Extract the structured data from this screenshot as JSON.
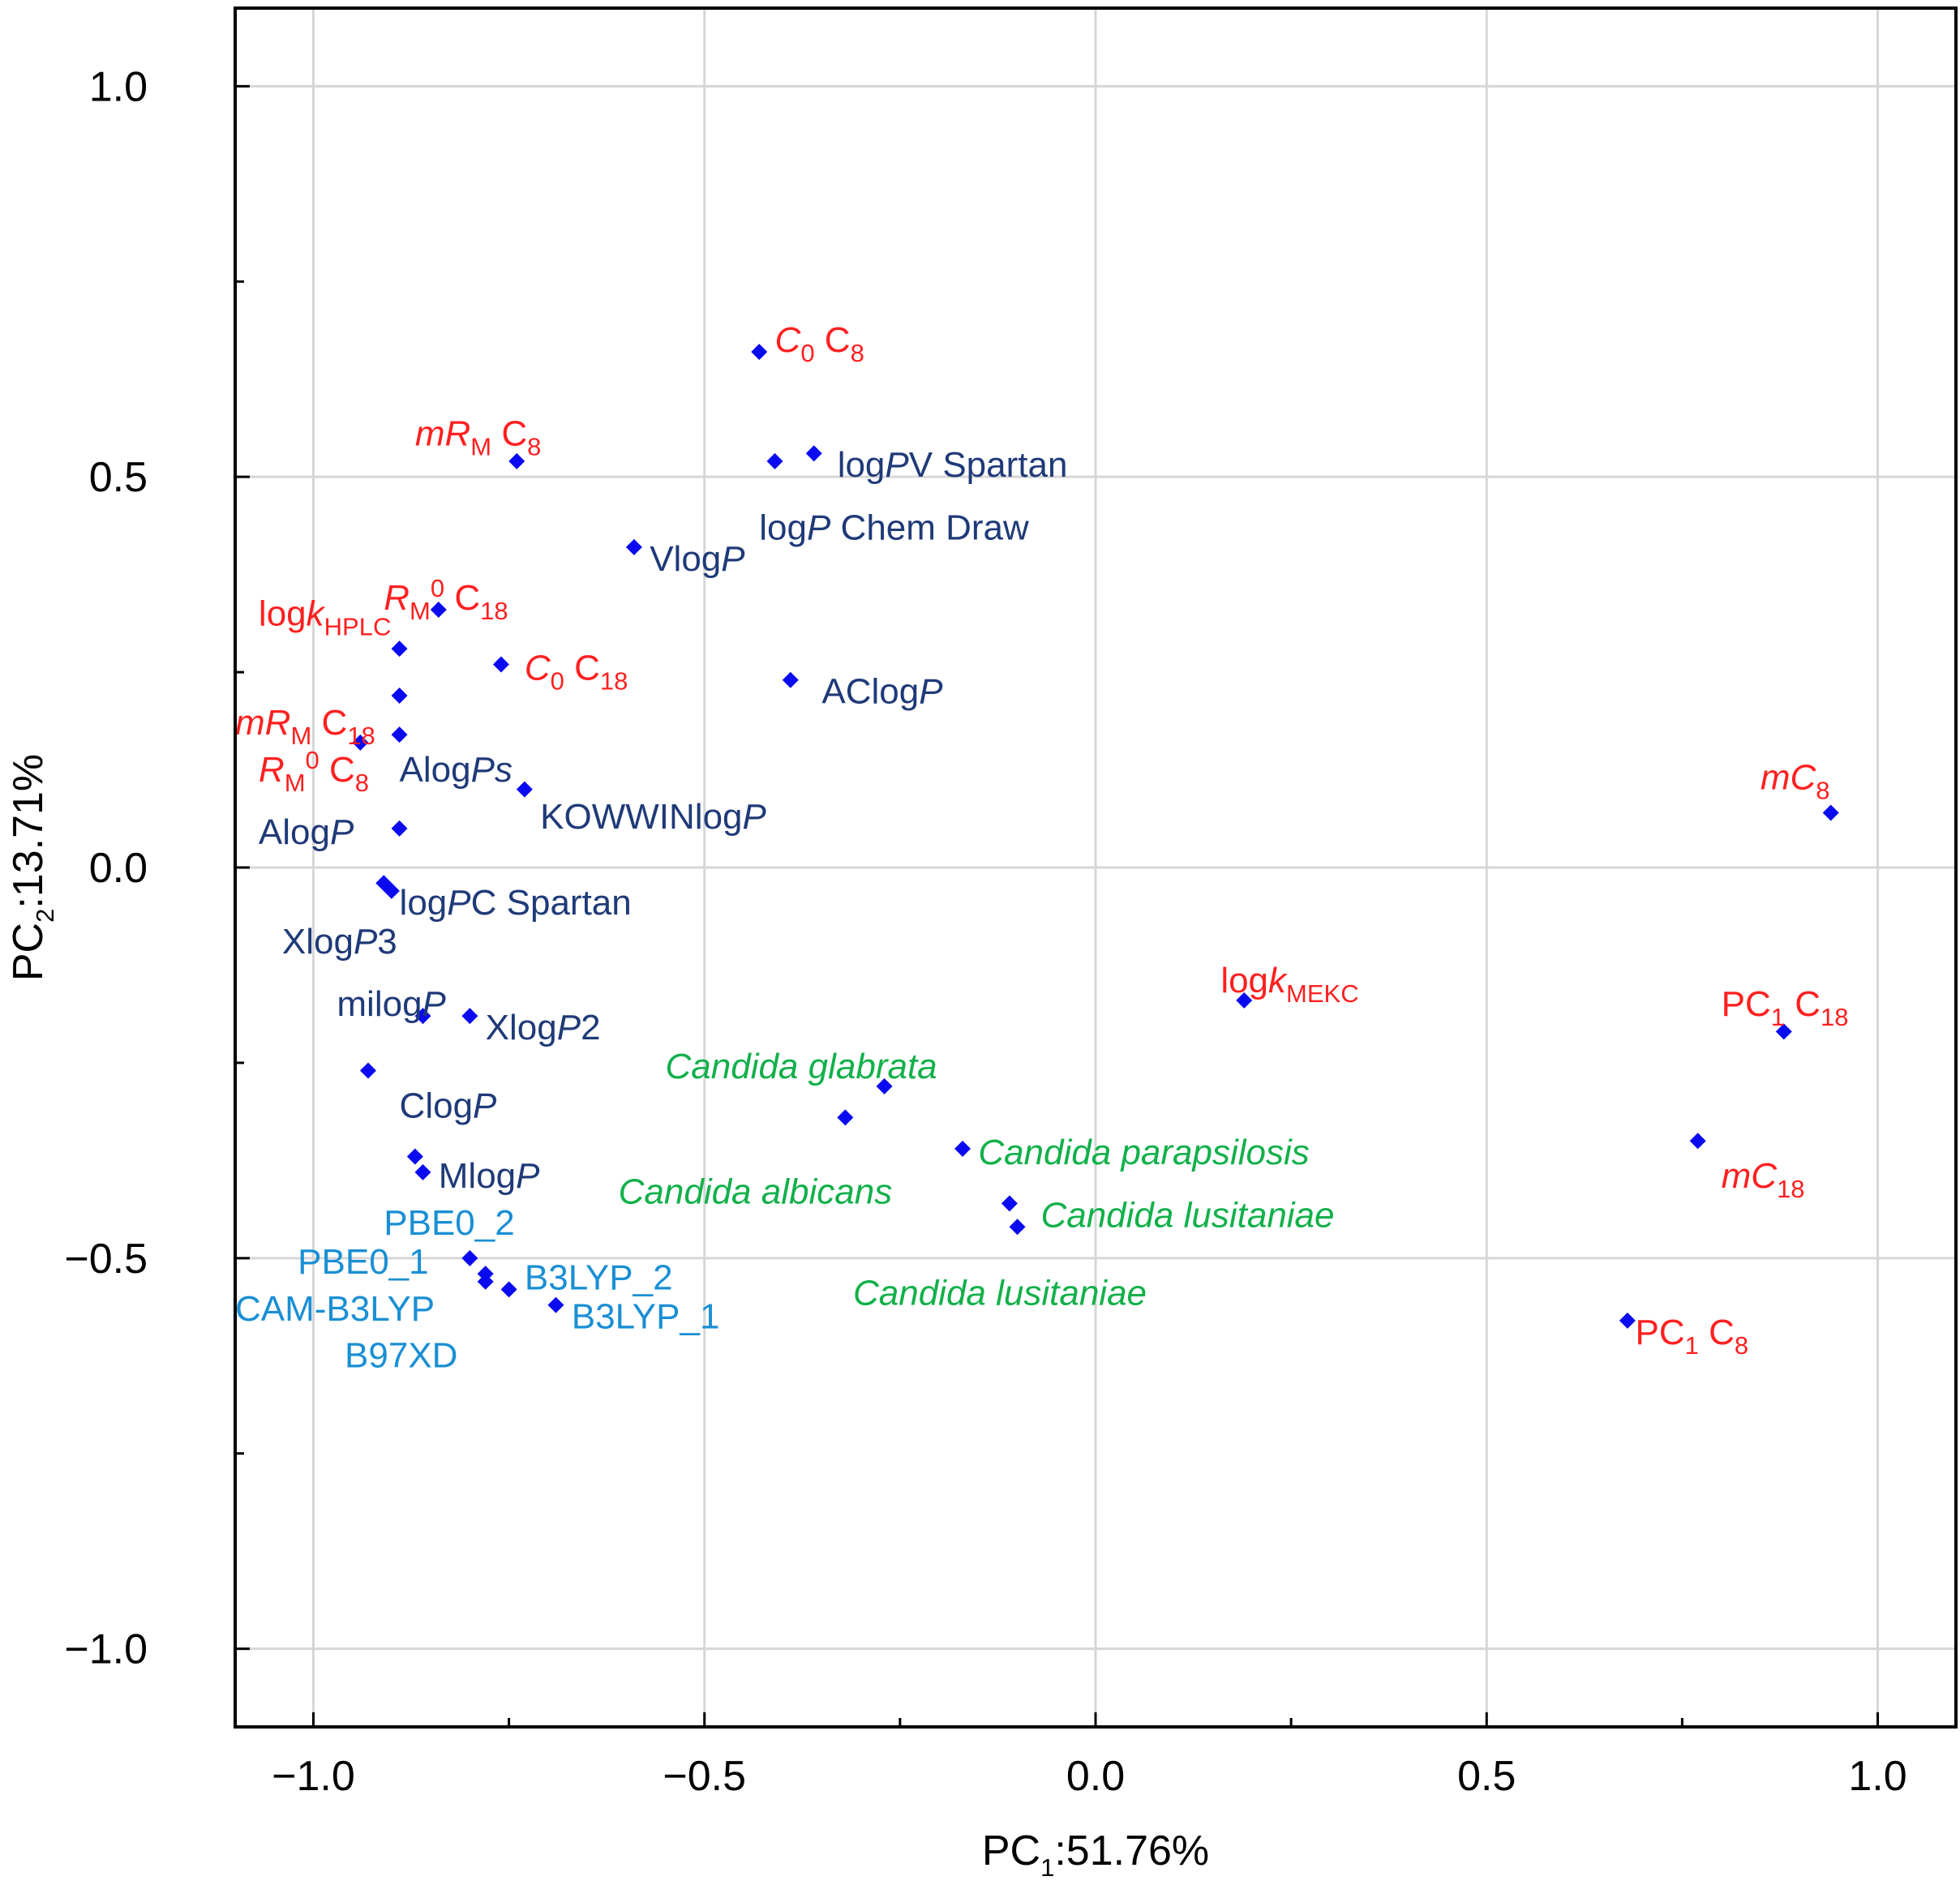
{
  "chart_data": {
    "type": "scatter",
    "title": "",
    "xlabel": {
      "main": "PC",
      "sub": "1",
      "rest": ":51.76%"
    },
    "ylabel": {
      "main": "PC",
      "sub": "2",
      "rest": ":13.71%"
    },
    "xlim": [
      -1.1,
      1.1
    ],
    "ylim": [
      -1.1,
      1.1
    ],
    "grid": true,
    "x_ticks": [
      -1.0,
      -0.5,
      0.0,
      0.5,
      1.0
    ],
    "y_ticks": [
      -1.0,
      -0.5,
      0.0,
      0.5,
      1.0
    ],
    "x_tick_labels": [
      "−1.0",
      "−0.5",
      "0.0",
      "0.5",
      "1.0"
    ],
    "y_tick_labels": [
      "−1.0",
      "−0.5",
      "0.0",
      "0.5",
      "1.0"
    ],
    "marker_color": "#0a0af0",
    "label_colors": {
      "chromatographic": "#ff2020",
      "computational": "#1f3a78",
      "quantum": "#1a8fd4",
      "biological": "#12b04a"
    },
    "points": [
      {
        "x": -0.43,
        "y": 0.66
      },
      {
        "x": -0.74,
        "y": 0.52
      },
      {
        "x": -0.41,
        "y": 0.52
      },
      {
        "x": -0.36,
        "y": 0.53
      },
      {
        "x": -0.59,
        "y": 0.41
      },
      {
        "x": -0.84,
        "y": 0.33
      },
      {
        "x": -0.89,
        "y": 0.28
      },
      {
        "x": -0.76,
        "y": 0.26
      },
      {
        "x": -0.39,
        "y": 0.24
      },
      {
        "x": -0.89,
        "y": 0.22
      },
      {
        "x": -0.89,
        "y": 0.17
      },
      {
        "x": -0.94,
        "y": 0.16
      },
      {
        "x": -0.73,
        "y": 0.1
      },
      {
        "x": -0.89,
        "y": 0.05
      },
      {
        "x": 0.94,
        "y": 0.07
      },
      {
        "x": -0.91,
        "y": -0.02
      },
      {
        "x": -0.9,
        "y": -0.03
      },
      {
        "x": 0.19,
        "y": -0.17
      },
      {
        "x": -0.86,
        "y": -0.19
      },
      {
        "x": -0.8,
        "y": -0.19
      },
      {
        "x": 0.88,
        "y": -0.21
      },
      {
        "x": -0.93,
        "y": -0.26
      },
      {
        "x": -0.27,
        "y": -0.28
      },
      {
        "x": -0.32,
        "y": -0.32
      },
      {
        "x": -0.17,
        "y": -0.36
      },
      {
        "x": 0.77,
        "y": -0.35
      },
      {
        "x": -0.87,
        "y": -0.37
      },
      {
        "x": -0.86,
        "y": -0.39
      },
      {
        "x": -0.11,
        "y": -0.43
      },
      {
        "x": -0.1,
        "y": -0.46
      },
      {
        "x": -0.8,
        "y": -0.5
      },
      {
        "x": -0.78,
        "y": -0.52
      },
      {
        "x": -0.78,
        "y": -0.53
      },
      {
        "x": -0.75,
        "y": -0.54
      },
      {
        "x": -0.69,
        "y": -0.56
      },
      {
        "x": 0.68,
        "y": -0.58
      }
    ],
    "labels": [
      {
        "group": "chromatographic",
        "at": [
          -0.41,
          0.66
        ],
        "parts": [
          {
            "t": "C",
            "s": "i"
          },
          {
            "t": "0",
            "s": "sub"
          },
          {
            "t": " C"
          },
          {
            "t": "8",
            "s": "sub"
          }
        ]
      },
      {
        "group": "chromatographic",
        "at": [
          -0.87,
          0.54
        ],
        "parts": [
          {
            "t": "mR",
            "s": "i"
          },
          {
            "t": "M",
            "s": "sub"
          },
          {
            "t": " C"
          },
          {
            "t": "8",
            "s": "sub"
          }
        ]
      },
      {
        "group": "computational",
        "at": [
          -0.33,
          0.5
        ],
        "parts": [
          {
            "t": "log"
          },
          {
            "t": "P",
            "s": "i"
          },
          {
            "t": "V Spartan"
          }
        ]
      },
      {
        "group": "computational",
        "at": [
          -0.43,
          0.42
        ],
        "parts": [
          {
            "t": "log"
          },
          {
            "t": "P",
            "s": "i"
          },
          {
            "t": " Chem Draw"
          }
        ]
      },
      {
        "group": "computational",
        "at": [
          -0.57,
          0.38
        ],
        "parts": [
          {
            "t": "Vlog"
          },
          {
            "t": "P",
            "s": "i"
          }
        ]
      },
      {
        "group": "chromatographic",
        "at": [
          -1.07,
          0.31
        ],
        "parts": [
          {
            "t": "log"
          },
          {
            "t": "k",
            "s": "i"
          },
          {
            "t": "HPLC",
            "s": "sub"
          }
        ]
      },
      {
        "group": "chromatographic",
        "at": [
          -0.91,
          0.33
        ],
        "parts": [
          {
            "t": "R",
            "s": "i"
          },
          {
            "t": "M",
            "s": "sub"
          },
          {
            "t": "0",
            "s": "sup"
          },
          {
            "t": " C"
          },
          {
            "t": "18",
            "s": "sub"
          }
        ]
      },
      {
        "group": "chromatographic",
        "at": [
          -0.73,
          0.24
        ],
        "parts": [
          {
            "t": "C",
            "s": "i"
          },
          {
            "t": "0",
            "s": "sub"
          },
          {
            "t": " C"
          },
          {
            "t": "18",
            "s": "sub"
          }
        ]
      },
      {
        "group": "computational",
        "at": [
          -0.35,
          0.21
        ],
        "parts": [
          {
            "t": "AClog"
          },
          {
            "t": "P",
            "s": "i"
          }
        ]
      },
      {
        "group": "chromatographic",
        "at": [
          -1.1,
          0.17
        ],
        "parts": [
          {
            "t": "mR",
            "s": "i"
          },
          {
            "t": "M",
            "s": "sub"
          },
          {
            "t": " C"
          },
          {
            "t": "18",
            "s": "sub"
          }
        ]
      },
      {
        "group": "chromatographic",
        "at": [
          -1.07,
          0.11
        ],
        "parts": [
          {
            "t": "R",
            "s": "i"
          },
          {
            "t": "M",
            "s": "sub"
          },
          {
            "t": "0",
            "s": "sup"
          },
          {
            "t": " C"
          },
          {
            "t": "8",
            "s": "sub"
          }
        ]
      },
      {
        "group": "computational",
        "at": [
          -0.89,
          0.11
        ],
        "parts": [
          {
            "t": "Alog"
          },
          {
            "t": "Ps",
            "s": "i"
          }
        ]
      },
      {
        "group": "computational",
        "at": [
          -0.71,
          0.05
        ],
        "parts": [
          {
            "t": "KOWWINlog"
          },
          {
            "t": "P",
            "s": "i"
          }
        ]
      },
      {
        "group": "computational",
        "at": [
          -1.07,
          0.03
        ],
        "parts": [
          {
            "t": "Alog"
          },
          {
            "t": "P",
            "s": "i"
          }
        ]
      },
      {
        "group": "chromatographic",
        "at": [
          0.85,
          0.1
        ],
        "parts": [
          {
            "t": "mC",
            "s": "i"
          },
          {
            "t": "8",
            "s": "sub"
          }
        ]
      },
      {
        "group": "computational",
        "at": [
          -0.89,
          -0.06
        ],
        "parts": [
          {
            "t": "log"
          },
          {
            "t": "P",
            "s": "i"
          },
          {
            "t": "C Spartan"
          }
        ]
      },
      {
        "group": "computational",
        "at": [
          -1.04,
          -0.11
        ],
        "parts": [
          {
            "t": "Xlog"
          },
          {
            "t": "P",
            "s": "i"
          },
          {
            "t": "3"
          }
        ]
      },
      {
        "group": "chromatographic",
        "at": [
          0.16,
          -0.16
        ],
        "parts": [
          {
            "t": "log"
          },
          {
            "t": "k",
            "s": "i"
          },
          {
            "t": "MEKC",
            "s": "sub"
          }
        ]
      },
      {
        "group": "computational",
        "at": [
          -0.97,
          -0.19
        ],
        "parts": [
          {
            "t": "milog"
          },
          {
            "t": "P",
            "s": "i"
          }
        ]
      },
      {
        "group": "computational",
        "at": [
          -0.78,
          -0.22
        ],
        "parts": [
          {
            "t": "Xlog"
          },
          {
            "t": "P",
            "s": "i"
          },
          {
            "t": "2"
          }
        ]
      },
      {
        "group": "chromatographic",
        "at": [
          0.8,
          -0.19
        ],
        "parts": [
          {
            "t": "PC"
          },
          {
            "t": "1",
            "s": "sub"
          },
          {
            "t": " C"
          },
          {
            "t": "18",
            "s": "sub"
          }
        ]
      },
      {
        "group": "biological",
        "at": [
          -0.55,
          -0.27
        ],
        "parts": [
          {
            "t": "Candida glabrata",
            "s": "i"
          }
        ]
      },
      {
        "group": "computational",
        "at": [
          -0.89,
          -0.32
        ],
        "parts": [
          {
            "t": "Clog"
          },
          {
            "t": "P",
            "s": "i"
          }
        ]
      },
      {
        "group": "biological",
        "at": [
          -0.15,
          -0.38
        ],
        "parts": [
          {
            "t": "Candida parapsilosis",
            "s": "i"
          }
        ]
      },
      {
        "group": "biological",
        "at": [
          -0.61,
          -0.43
        ],
        "parts": [
          {
            "t": "Candida albicans",
            "s": "i"
          }
        ]
      },
      {
        "group": "computational",
        "at": [
          -0.84,
          -0.41
        ],
        "parts": [
          {
            "t": "Mlog"
          },
          {
            "t": "P",
            "s": "i"
          }
        ]
      },
      {
        "group": "chromatographic",
        "at": [
          0.8,
          -0.41
        ],
        "parts": [
          {
            "t": "mC",
            "s": "i"
          },
          {
            "t": "18",
            "s": "sub"
          }
        ]
      },
      {
        "group": "biological",
        "at": [
          -0.07,
          -0.46
        ],
        "parts": [
          {
            "t": "Candida lusitaniae",
            "s": "i"
          }
        ]
      },
      {
        "group": "quantum",
        "at": [
          -0.91,
          -0.47
        ],
        "parts": [
          {
            "t": "PBE0_2"
          }
        ]
      },
      {
        "group": "quantum",
        "at": [
          -1.02,
          -0.52
        ],
        "parts": [
          {
            "t": "PBE0_1"
          }
        ]
      },
      {
        "group": "quantum",
        "at": [
          -0.73,
          -0.54
        ],
        "parts": [
          {
            "t": "B3LYP_2"
          }
        ]
      },
      {
        "group": "biological",
        "at": [
          -0.31,
          -0.56
        ],
        "parts": [
          {
            "t": "Candida lusitaniae",
            "s": "i"
          }
        ]
      },
      {
        "group": "quantum",
        "at": [
          -1.1,
          -0.58
        ],
        "parts": [
          {
            "t": "CAM-B3LYP"
          }
        ]
      },
      {
        "group": "quantum",
        "at": [
          -0.67,
          -0.59
        ],
        "parts": [
          {
            "t": "B3LYP_1"
          }
        ]
      },
      {
        "group": "chromatographic",
        "at": [
          0.69,
          -0.61
        ],
        "parts": [
          {
            "t": "PC"
          },
          {
            "t": "1",
            "s": "sub"
          },
          {
            "t": " C"
          },
          {
            "t": "8",
            "s": "sub"
          }
        ]
      },
      {
        "group": "quantum",
        "at": [
          -0.96,
          -0.64
        ],
        "parts": [
          {
            "t": "B97XD"
          }
        ]
      }
    ]
  }
}
